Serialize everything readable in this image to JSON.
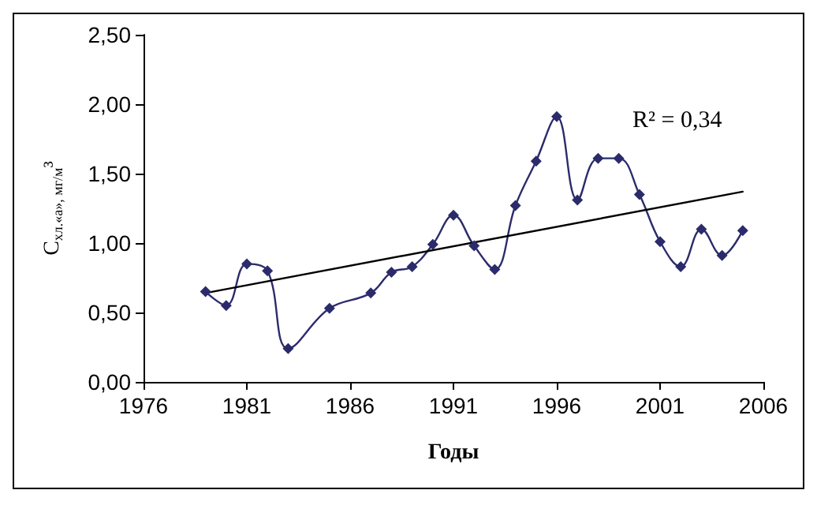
{
  "chart_data": {
    "type": "line",
    "xlabel": "Годы",
    "ylabel": "C$_{хл.«а», мг/м}$³",
    "x": [
      1979,
      1980,
      1981,
      1982,
      1983,
      1985,
      1987,
      1988,
      1989,
      1990,
      1991,
      1992,
      1993,
      1994,
      1995,
      1996,
      1997,
      1998,
      1999,
      2000,
      2001,
      2002,
      2003,
      2004,
      2005
    ],
    "series": [
      {
        "color": "#2b2b6b",
        "marker": "diamond",
        "values": [
          0.65,
          0.55,
          0.85,
          0.8,
          0.24,
          0.53,
          0.64,
          0.79,
          0.83,
          0.99,
          1.2,
          0.98,
          0.81,
          1.27,
          1.59,
          1.91,
          1.31,
          1.61,
          1.61,
          1.35,
          1.01,
          0.83,
          1.1,
          0.91,
          1.09
        ]
      },
      {
        "type": "line",
        "color": "#000000",
        "marker": "none",
        "x": [
          1979,
          2005
        ],
        "values": [
          0.64,
          1.37
        ]
      }
    ],
    "annotations": [
      "R² = 0,34"
    ],
    "xlim": [
      1976,
      2006
    ],
    "xticks": [
      1976,
      1981,
      1986,
      1991,
      1996,
      2001,
      2006
    ],
    "ylim": [
      0,
      2.5
    ],
    "yticks": [
      {
        "value": 0,
        "label": "0,00"
      },
      {
        "value": 0.5,
        "label": "0,50"
      },
      {
        "value": 1,
        "label": "1,00"
      },
      {
        "value": 1.5,
        "label": "1,50"
      },
      {
        "value": 2,
        "label": "2,00"
      },
      {
        "value": 2.5,
        "label": "2,50"
      }
    ],
    "grid": false
  }
}
